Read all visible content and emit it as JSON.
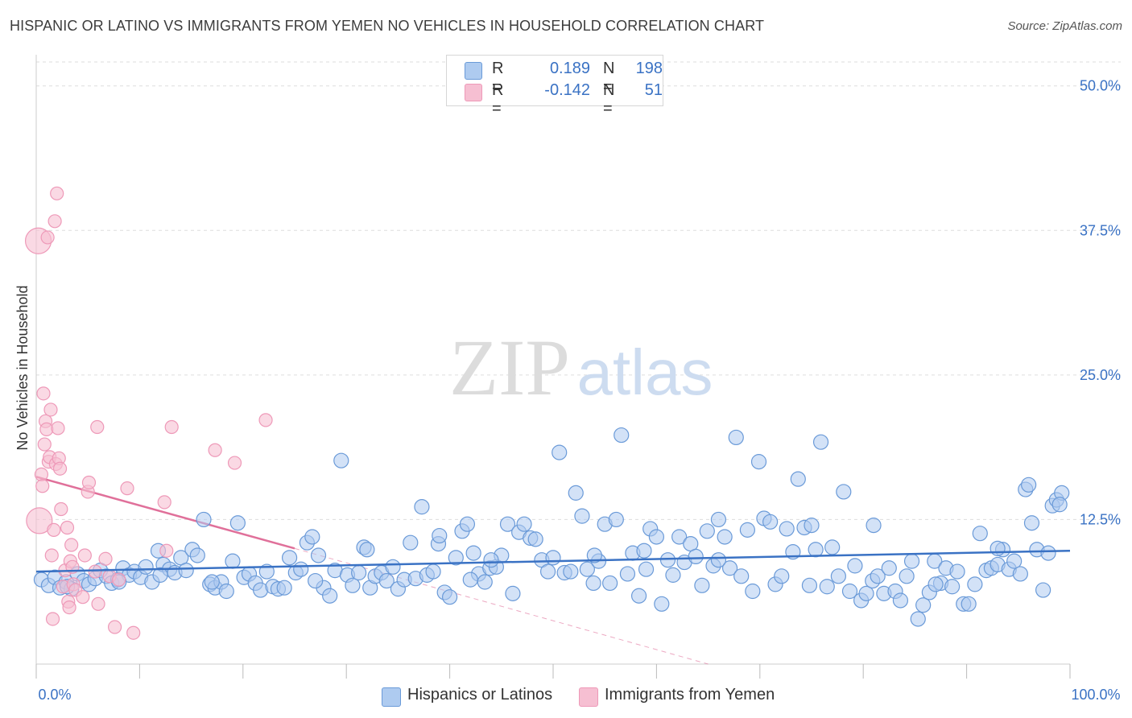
{
  "title": "HISPANIC OR LATINO VS IMMIGRANTS FROM YEMEN NO VEHICLES IN HOUSEHOLD CORRELATION CHART",
  "source": "Source: ZipAtlas.com",
  "watermark": {
    "zip": "ZIP",
    "atlas": "atlas"
  },
  "colors": {
    "blue": "#3a72c4",
    "blue_fill": "#aecbf0",
    "blue_stroke": "#6a9ad8",
    "pink": "#e0709a",
    "pink_fill": "#f6bfd2",
    "pink_stroke": "#ee99b8",
    "grid": "#dddddd",
    "axis_text": "#3a72c4"
  },
  "legend": {
    "rows": [
      {
        "r_label": "R =",
        "r_value": "0.189",
        "n_label": "N =",
        "n_value": "198"
      },
      {
        "r_label": "R =",
        "r_value": "-0.142",
        "n_label": "N =",
        "n_value": "51"
      }
    ]
  },
  "bottom_legend": {
    "series1": "Hispanics or Latinos",
    "series2": "Immigrants from Yemen"
  },
  "chart_data": {
    "type": "scatter",
    "title": "HISPANIC OR LATINO VS IMMIGRANTS FROM YEMEN NO VEHICLES IN HOUSEHOLD CORRELATION CHART",
    "xlabel": "",
    "ylabel": "No Vehicles in Household",
    "xlim": [
      0,
      100
    ],
    "ylim": [
      0,
      52
    ],
    "x_tick_labels": [
      "0.0%",
      "100.0%"
    ],
    "y_ticks": [
      12.5,
      25.0,
      37.5,
      50.0
    ],
    "y_tick_labels": [
      "12.5%",
      "25.0%",
      "37.5%",
      "50.0%"
    ],
    "grid": true,
    "series": [
      {
        "name": "Hispanics or Latinos",
        "r": 0.189,
        "n": 198,
        "trend": {
          "x": [
            0,
            100
          ],
          "y": [
            8.0,
            9.8
          ]
        },
        "points": [
          [
            0.5,
            7.3
          ],
          [
            1.2,
            6.8
          ],
          [
            1.8,
            7.5
          ],
          [
            2.3,
            6.6
          ],
          [
            2.9,
            7.1
          ],
          [
            3.4,
            6.5
          ],
          [
            4.0,
            7.8
          ],
          [
            4.6,
            7.2
          ],
          [
            5.1,
            6.9
          ],
          [
            5.7,
            7.4
          ],
          [
            6.2,
            8.1
          ],
          [
            6.8,
            7.6
          ],
          [
            7.3,
            7.0
          ],
          [
            7.9,
            7.3
          ],
          [
            8.4,
            8.3
          ],
          [
            9.0,
            7.7
          ],
          [
            9.5,
            8.0
          ],
          [
            10.1,
            7.5
          ],
          [
            10.6,
            8.4
          ],
          [
            11.2,
            7.1
          ],
          [
            11.8,
            9.8
          ],
          [
            12.3,
            8.6
          ],
          [
            12.9,
            8.2
          ],
          [
            13.4,
            7.9
          ],
          [
            14.0,
            9.2
          ],
          [
            14.5,
            8.1
          ],
          [
            15.1,
            9.9
          ],
          [
            15.6,
            9.4
          ],
          [
            16.2,
            12.5
          ],
          [
            16.8,
            6.9
          ],
          [
            17.3,
            6.6
          ],
          [
            17.9,
            7.1
          ],
          [
            18.4,
            6.3
          ],
          [
            19.0,
            8.9
          ],
          [
            19.5,
            12.2
          ],
          [
            20.1,
            7.5
          ],
          [
            20.6,
            7.8
          ],
          [
            21.2,
            7.0
          ],
          [
            21.7,
            6.4
          ],
          [
            22.3,
            8.0
          ],
          [
            22.9,
            6.7
          ],
          [
            23.4,
            6.5
          ],
          [
            24.0,
            6.6
          ],
          [
            24.5,
            9.2
          ],
          [
            25.1,
            7.9
          ],
          [
            25.6,
            8.2
          ],
          [
            26.2,
            10.5
          ],
          [
            26.7,
            11.0
          ],
          [
            27.3,
            9.4
          ],
          [
            27.8,
            6.6
          ],
          [
            28.4,
            5.9
          ],
          [
            28.9,
            8.1
          ],
          [
            29.5,
            17.6
          ],
          [
            30.1,
            7.7
          ],
          [
            30.6,
            6.8
          ],
          [
            31.2,
            7.9
          ],
          [
            31.7,
            10.1
          ],
          [
            32.3,
            6.6
          ],
          [
            32.8,
            7.6
          ],
          [
            33.4,
            7.9
          ],
          [
            33.9,
            7.2
          ],
          [
            34.5,
            8.4
          ],
          [
            35.0,
            6.5
          ],
          [
            35.6,
            7.3
          ],
          [
            36.2,
            10.5
          ],
          [
            36.7,
            7.4
          ],
          [
            37.3,
            13.6
          ],
          [
            37.8,
            7.7
          ],
          [
            38.4,
            8.0
          ],
          [
            38.9,
            10.4
          ],
          [
            39.5,
            6.2
          ],
          [
            40.0,
            5.8
          ],
          [
            40.6,
            9.2
          ],
          [
            41.2,
            11.5
          ],
          [
            41.7,
            12.1
          ],
          [
            42.3,
            9.6
          ],
          [
            42.8,
            7.8
          ],
          [
            43.4,
            7.1
          ],
          [
            43.9,
            8.3
          ],
          [
            44.5,
            8.4
          ],
          [
            45.0,
            9.4
          ],
          [
            45.6,
            12.1
          ],
          [
            46.1,
            6.1
          ],
          [
            46.7,
            11.4
          ],
          [
            47.2,
            12.1
          ],
          [
            47.8,
            10.9
          ],
          [
            48.3,
            10.8
          ],
          [
            48.9,
            9.0
          ],
          [
            49.5,
            8.0
          ],
          [
            50.0,
            9.2
          ],
          [
            50.6,
            18.3
          ],
          [
            51.1,
            7.9
          ],
          [
            51.7,
            8.0
          ],
          [
            52.2,
            14.8
          ],
          [
            52.8,
            12.8
          ],
          [
            53.3,
            8.2
          ],
          [
            53.9,
            7.0
          ],
          [
            54.4,
            8.9
          ],
          [
            55.0,
            12.1
          ],
          [
            55.5,
            7.0
          ],
          [
            56.1,
            12.5
          ],
          [
            56.6,
            19.8
          ],
          [
            57.2,
            7.8
          ],
          [
            57.7,
            9.6
          ],
          [
            58.3,
            5.9
          ],
          [
            58.8,
            9.8
          ],
          [
            59.4,
            11.7
          ],
          [
            60.0,
            11.0
          ],
          [
            60.5,
            5.2
          ],
          [
            61.1,
            9.0
          ],
          [
            61.6,
            7.7
          ],
          [
            62.2,
            11.0
          ],
          [
            62.7,
            8.8
          ],
          [
            63.3,
            10.4
          ],
          [
            63.8,
            9.3
          ],
          [
            64.4,
            6.8
          ],
          [
            64.9,
            11.5
          ],
          [
            65.5,
            8.5
          ],
          [
            66.0,
            12.5
          ],
          [
            66.6,
            11.0
          ],
          [
            67.1,
            8.3
          ],
          [
            67.7,
            19.6
          ],
          [
            68.2,
            7.6
          ],
          [
            68.8,
            11.6
          ],
          [
            69.3,
            6.3
          ],
          [
            69.9,
            17.5
          ],
          [
            70.4,
            12.6
          ],
          [
            71.0,
            12.3
          ],
          [
            71.5,
            6.9
          ],
          [
            72.1,
            7.6
          ],
          [
            72.6,
            11.7
          ],
          [
            73.2,
            9.7
          ],
          [
            73.7,
            16.0
          ],
          [
            74.3,
            11.8
          ],
          [
            74.8,
            6.8
          ],
          [
            75.4,
            9.9
          ],
          [
            75.9,
            19.2
          ],
          [
            76.5,
            6.7
          ],
          [
            77.0,
            10.1
          ],
          [
            77.6,
            7.6
          ],
          [
            78.1,
            14.9
          ],
          [
            78.7,
            6.3
          ],
          [
            79.2,
            8.5
          ],
          [
            79.8,
            5.5
          ],
          [
            80.3,
            6.1
          ],
          [
            80.9,
            7.2
          ],
          [
            81.4,
            7.6
          ],
          [
            82.0,
            6.1
          ],
          [
            82.5,
            8.3
          ],
          [
            83.1,
            6.3
          ],
          [
            83.6,
            5.5
          ],
          [
            84.2,
            7.6
          ],
          [
            84.7,
            8.9
          ],
          [
            85.3,
            3.9
          ],
          [
            85.8,
            5.1
          ],
          [
            86.4,
            6.2
          ],
          [
            86.9,
            8.9
          ],
          [
            87.5,
            7.0
          ],
          [
            88.0,
            8.3
          ],
          [
            88.6,
            6.7
          ],
          [
            89.1,
            8.0
          ],
          [
            89.7,
            5.2
          ],
          [
            90.2,
            5.2
          ],
          [
            90.8,
            6.9
          ],
          [
            91.3,
            11.3
          ],
          [
            91.9,
            8.1
          ],
          [
            92.4,
            8.3
          ],
          [
            93.0,
            8.6
          ],
          [
            93.5,
            9.9
          ],
          [
            94.1,
            8.2
          ],
          [
            94.6,
            8.9
          ],
          [
            95.2,
            7.8
          ],
          [
            95.7,
            15.1
          ],
          [
            96.3,
            12.2
          ],
          [
            96.8,
            9.9
          ],
          [
            97.4,
            6.4
          ],
          [
            97.9,
            9.6
          ],
          [
            98.3,
            13.7
          ],
          [
            98.7,
            14.2
          ],
          [
            99.2,
            14.8
          ],
          [
            3.0,
            6.7
          ],
          [
            8.0,
            7.1
          ],
          [
            12.0,
            7.7
          ],
          [
            17.0,
            7.1
          ],
          [
            27.0,
            7.2
          ],
          [
            32.0,
            9.9
          ],
          [
            44.0,
            9.0
          ],
          [
            54.0,
            9.4
          ],
          [
            59.0,
            8.2
          ],
          [
            66.0,
            9.0
          ],
          [
            75.0,
            12.0
          ],
          [
            81.0,
            12.0
          ],
          [
            87.0,
            6.9
          ],
          [
            93.0,
            10.0
          ],
          [
            96.0,
            15.5
          ],
          [
            99.0,
            13.8
          ],
          [
            39.0,
            11.1
          ],
          [
            42.0,
            7.3
          ]
        ]
      },
      {
        "name": "Immigrants from Yemen",
        "r": -0.142,
        "n": 51,
        "trend": {
          "x": [
            0,
            25
          ],
          "y": [
            16.2,
            10.0
          ]
        },
        "trend_dashed": {
          "x": [
            25,
            65
          ],
          "y": [
            10.0,
            0.0
          ]
        },
        "points": [
          [
            0.2,
            36.6
          ],
          [
            0.3,
            12.4
          ],
          [
            0.5,
            16.4
          ],
          [
            0.6,
            15.4
          ],
          [
            0.7,
            23.4
          ],
          [
            0.8,
            19.0
          ],
          [
            0.9,
            21.0
          ],
          [
            1.0,
            20.3
          ],
          [
            1.1,
            36.9
          ],
          [
            1.2,
            17.5
          ],
          [
            1.3,
            17.9
          ],
          [
            1.4,
            22.0
          ],
          [
            1.5,
            9.4
          ],
          [
            1.6,
            3.9
          ],
          [
            1.7,
            11.6
          ],
          [
            1.8,
            38.3
          ],
          [
            1.9,
            17.3
          ],
          [
            2.0,
            40.7
          ],
          [
            2.1,
            20.4
          ],
          [
            2.2,
            17.8
          ],
          [
            2.3,
            16.9
          ],
          [
            2.4,
            13.4
          ],
          [
            2.6,
            6.7
          ],
          [
            2.8,
            8.1
          ],
          [
            3.0,
            11.8
          ],
          [
            3.1,
            5.4
          ],
          [
            3.2,
            4.9
          ],
          [
            3.3,
            8.9
          ],
          [
            3.4,
            10.3
          ],
          [
            3.5,
            8.4
          ],
          [
            3.6,
            6.9
          ],
          [
            3.8,
            6.4
          ],
          [
            4.5,
            5.8
          ],
          [
            4.7,
            9.4
          ],
          [
            5.0,
            14.9
          ],
          [
            5.1,
            15.7
          ],
          [
            5.7,
            8.0
          ],
          [
            5.9,
            20.5
          ],
          [
            6.0,
            5.2
          ],
          [
            6.7,
            9.1
          ],
          [
            7.1,
            7.6
          ],
          [
            7.6,
            3.2
          ],
          [
            8.0,
            7.3
          ],
          [
            8.8,
            15.2
          ],
          [
            9.4,
            2.7
          ],
          [
            12.4,
            14.0
          ],
          [
            12.6,
            9.8
          ],
          [
            13.1,
            20.5
          ],
          [
            17.3,
            18.5
          ],
          [
            19.2,
            17.4
          ],
          [
            22.2,
            21.1
          ]
        ]
      }
    ]
  }
}
